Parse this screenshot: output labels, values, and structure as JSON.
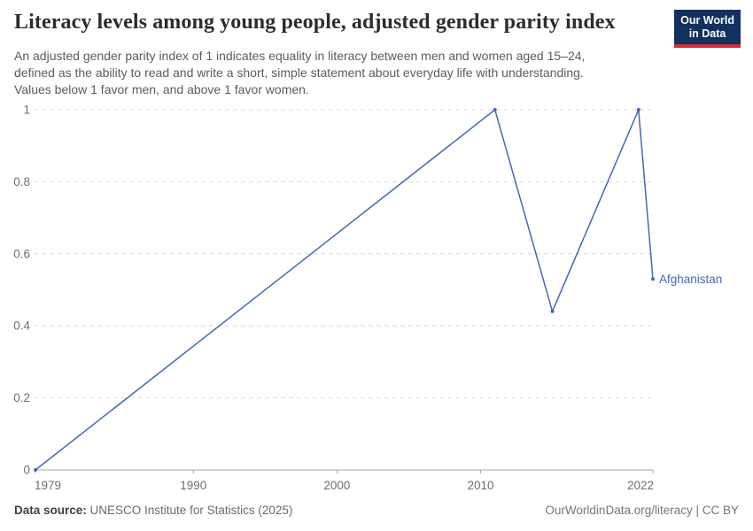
{
  "header": {
    "logo": {
      "line1": "Our World",
      "line2": "in Data",
      "bg_color": "#12315d",
      "stripe_color": "#d12d3e"
    }
  },
  "chart_data": {
    "type": "line",
    "title": "Literacy levels among young people, adjusted gender parity index",
    "subtitle_lines": [
      "An adjusted gender parity index of 1 indicates equality in literacy between men and women aged 15–24,",
      "defined as the ability to read and write a short, simple statement about everyday life with understanding.",
      "Values below 1 favor men, and above 1 favor women."
    ],
    "xlabel": "",
    "ylabel": "",
    "xlim": [
      1979,
      2022
    ],
    "ylim": [
      0,
      1
    ],
    "xticks": [
      1979,
      1990,
      2000,
      2010,
      2022
    ],
    "yticks": [
      0,
      0.2,
      0.4,
      0.6,
      0.8,
      1
    ],
    "ytick_labels": [
      "0",
      "0.2",
      "0.4",
      "0.6",
      "0.8",
      "1"
    ],
    "grid": "horizontal-dashed",
    "legend_position": "end-of-line-label",
    "series": [
      {
        "name": "Afghanistan",
        "color": "#4668ac",
        "points": [
          [
            1979,
            0
          ],
          [
            2011,
            1
          ],
          [
            2015,
            0.44
          ],
          [
            2021,
            1
          ],
          [
            2022,
            0.53
          ]
        ]
      }
    ]
  },
  "footer": {
    "source_label": "Data source:",
    "source_text": " UNESCO Institute for Statistics (2025)",
    "right_text": "OurWorldinData.org/literacy | CC BY"
  }
}
